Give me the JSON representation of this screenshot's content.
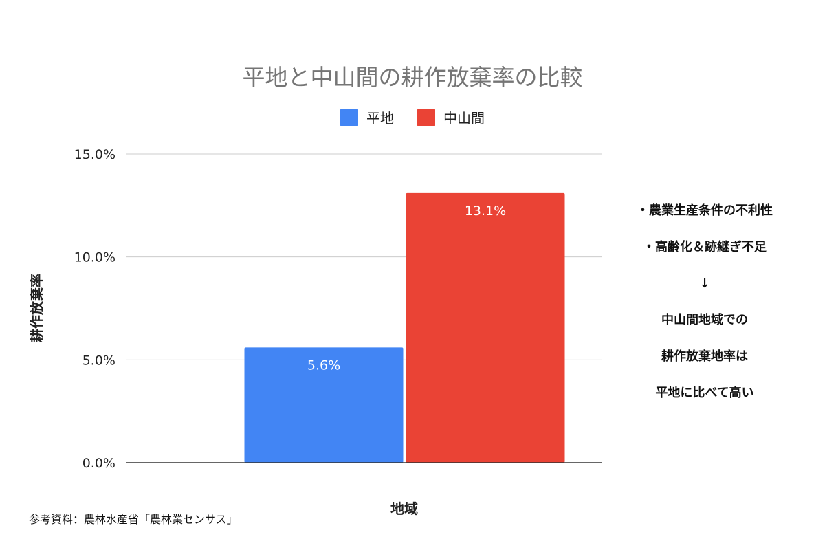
{
  "chart_data": {
    "type": "bar",
    "title": "平地と中山間の耕作放棄率の比較",
    "xlabel": "地域",
    "ylabel": "耕作放棄率",
    "ylim": [
      0,
      15
    ],
    "y_ticks": [
      "0.0%",
      "5.0%",
      "10.0%",
      "15.0%"
    ],
    "grid": true,
    "legend_position": "top",
    "series": [
      {
        "name": "平地",
        "values": [
          5.6
        ],
        "label": "5.6%",
        "color": "#4285F4"
      },
      {
        "name": "中山間",
        "values": [
          13.1
        ],
        "label": "13.1%",
        "color": "#EA4335"
      }
    ]
  },
  "annotation_lines": [
    "・農業生産条件の不利性",
    "・高齢化＆跡継ぎ不足",
    "↓",
    "中山間地域での",
    "耕作放棄地率は",
    "平地に比べて高い"
  ],
  "source_note": "参考資料：農林水産省「農林業センサス」"
}
